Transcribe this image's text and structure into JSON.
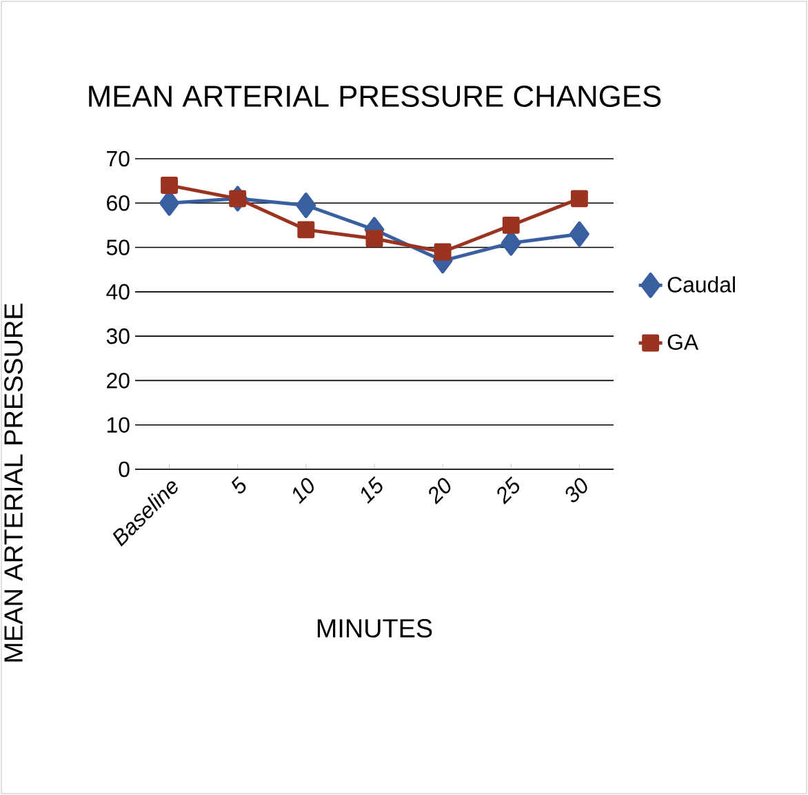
{
  "chart_data": {
    "type": "line",
    "title": "MEAN ARTERIAL PRESSURE CHANGES",
    "xlabel": "MINUTES",
    "ylabel": "MEAN ARTERIAL PRESSURE",
    "categories": [
      "Baseline",
      "5",
      "10",
      "15",
      "20",
      "25",
      "30"
    ],
    "series": [
      {
        "name": "Caudal",
        "color": "#3a5fa0",
        "marker": "diamond",
        "values": [
          60,
          61,
          59.5,
          54,
          47,
          51,
          53
        ]
      },
      {
        "name": "GA",
        "color": "#9a3320",
        "marker": "square",
        "values": [
          64,
          61,
          54,
          52,
          49,
          55,
          61
        ]
      }
    ],
    "ylim": [
      0,
      70
    ],
    "yticks": [
      0,
      10,
      20,
      30,
      40,
      50,
      60,
      70
    ],
    "grid": "y",
    "legend": "right"
  }
}
